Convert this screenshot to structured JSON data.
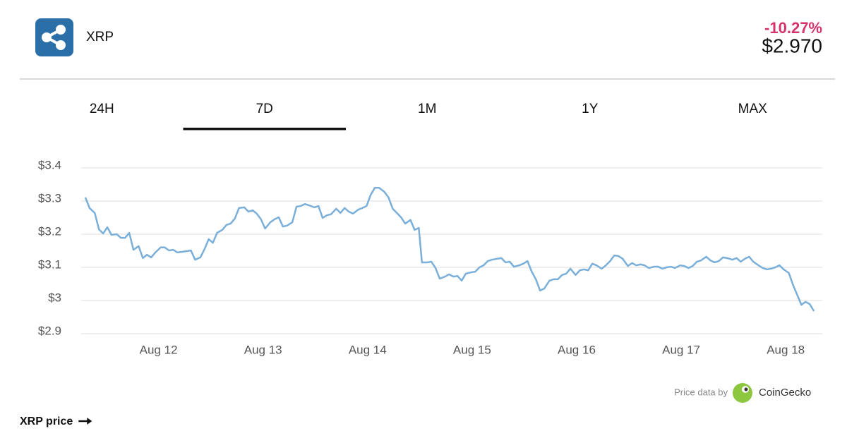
{
  "header": {
    "name": "XRP",
    "change": "-10.27%",
    "price": "$2.970"
  },
  "tabs": {
    "items": [
      "24H",
      "7D",
      "1M",
      "1Y",
      "MAX"
    ],
    "active": 1
  },
  "chart_data": {
    "type": "line",
    "color": "#7aafd9",
    "grid": true,
    "xlim": [
      11.26,
      18.35
    ],
    "ylim": [
      2.9,
      3.4
    ],
    "xticks": [
      {
        "value": 12,
        "label": "Aug 12"
      },
      {
        "value": 13,
        "label": "Aug 13"
      },
      {
        "value": 14,
        "label": "Aug 14"
      },
      {
        "value": 15,
        "label": "Aug 15"
      },
      {
        "value": 16,
        "label": "Aug 16"
      },
      {
        "value": 17,
        "label": "Aug 17"
      },
      {
        "value": 18,
        "label": "Aug 18"
      }
    ],
    "yticks": [
      {
        "value": 2.9,
        "label": "$2.9"
      },
      {
        "value": 3,
        "label": "$3"
      },
      {
        "value": 3.1,
        "label": "$3.1"
      },
      {
        "value": 3.2,
        "label": "$3.2"
      },
      {
        "value": 3.3,
        "label": "$3.3"
      },
      {
        "value": 3.4,
        "label": "$3.4"
      }
    ],
    "x": [
      11.3,
      11.34,
      11.39,
      11.43,
      11.47,
      11.51,
      11.55,
      11.6,
      11.64,
      11.68,
      11.72,
      11.76,
      11.81,
      11.85,
      11.89,
      11.93,
      11.97,
      12.02,
      12.06,
      12.1,
      12.14,
      12.18,
      12.23,
      12.27,
      12.31,
      12.35,
      12.4,
      12.44,
      12.48,
      12.52,
      12.56,
      12.61,
      12.65,
      12.69,
      12.73,
      12.77,
      12.82,
      12.86,
      12.9,
      12.94,
      12.98,
      13.02,
      13.07,
      13.11,
      13.15,
      13.19,
      13.23,
      13.28,
      13.32,
      13.36,
      13.4,
      13.44,
      13.49,
      13.53,
      13.57,
      13.61,
      13.65,
      13.7,
      13.74,
      13.78,
      13.82,
      13.86,
      13.91,
      13.95,
      13.99,
      14.03,
      14.07,
      14.11,
      14.16,
      14.2,
      14.24,
      14.28,
      14.32,
      14.36,
      14.41,
      14.45,
      14.49,
      14.52,
      14.57,
      14.61,
      14.65,
      14.69,
      14.74,
      14.78,
      14.82,
      14.86,
      14.9,
      14.94,
      14.99,
      15.03,
      15.07,
      15.11,
      15.15,
      15.19,
      15.24,
      15.28,
      15.32,
      15.36,
      15.4,
      15.45,
      15.49,
      15.53,
      15.57,
      15.61,
      15.65,
      15.69,
      15.74,
      15.78,
      15.82,
      15.86,
      15.9,
      15.94,
      15.99,
      16.03,
      16.07,
      16.11,
      16.15,
      16.19,
      16.24,
      16.28,
      16.32,
      16.36,
      16.4,
      16.44,
      16.49,
      16.53,
      16.57,
      16.61,
      16.65,
      16.69,
      16.74,
      16.78,
      16.82,
      16.86,
      16.9,
      16.94,
      16.99,
      17.03,
      17.07,
      17.11,
      17.15,
      17.19,
      17.24,
      17.28,
      17.32,
      17.36,
      17.4,
      17.44,
      17.49,
      17.53,
      17.57,
      17.61,
      17.65,
      17.69,
      17.74,
      17.78,
      17.82,
      17.86,
      17.9,
      17.94,
      17.98,
      18.03,
      18.07,
      18.11,
      18.15,
      18.19,
      18.23,
      18.27
    ],
    "values": [
      3.311,
      3.279,
      3.264,
      3.215,
      3.202,
      3.221,
      3.198,
      3.2,
      3.189,
      3.189,
      3.204,
      3.153,
      3.164,
      3.128,
      3.138,
      3.13,
      3.145,
      3.16,
      3.16,
      3.151,
      3.153,
      3.145,
      3.147,
      3.149,
      3.151,
      3.123,
      3.13,
      3.155,
      3.185,
      3.174,
      3.204,
      3.213,
      3.228,
      3.232,
      3.247,
      3.279,
      3.281,
      3.268,
      3.272,
      3.262,
      3.245,
      3.217,
      3.236,
      3.245,
      3.251,
      3.223,
      3.226,
      3.236,
      3.283,
      3.285,
      3.291,
      3.287,
      3.281,
      3.285,
      3.249,
      3.257,
      3.26,
      3.277,
      3.264,
      3.279,
      3.268,
      3.262,
      3.274,
      3.279,
      3.285,
      3.319,
      3.34,
      3.34,
      3.328,
      3.311,
      3.277,
      3.264,
      3.251,
      3.232,
      3.243,
      3.213,
      3.219,
      3.115,
      3.115,
      3.117,
      3.098,
      3.066,
      3.072,
      3.079,
      3.072,
      3.074,
      3.06,
      3.081,
      3.085,
      3.087,
      3.1,
      3.106,
      3.119,
      3.123,
      3.126,
      3.128,
      3.115,
      3.117,
      3.102,
      3.106,
      3.111,
      3.119,
      3.087,
      3.064,
      3.03,
      3.036,
      3.06,
      3.064,
      3.064,
      3.077,
      3.081,
      3.096,
      3.077,
      3.091,
      3.094,
      3.091,
      3.111,
      3.106,
      3.096,
      3.106,
      3.119,
      3.136,
      3.134,
      3.126,
      3.104,
      3.113,
      3.106,
      3.109,
      3.106,
      3.098,
      3.102,
      3.102,
      3.096,
      3.1,
      3.102,
      3.098,
      3.106,
      3.104,
      3.098,
      3.104,
      3.117,
      3.121,
      3.132,
      3.121,
      3.115,
      3.119,
      3.13,
      3.128,
      3.123,
      3.128,
      3.117,
      3.126,
      3.132,
      3.117,
      3.106,
      3.098,
      3.094,
      3.096,
      3.1,
      3.106,
      3.094,
      3.083,
      3.047,
      3.017,
      2.987,
      2.996,
      2.989,
      2.968
    ]
  },
  "footer": {
    "source_prefix": "Price data by",
    "source": "CoinGecko",
    "link": "XRP price"
  }
}
